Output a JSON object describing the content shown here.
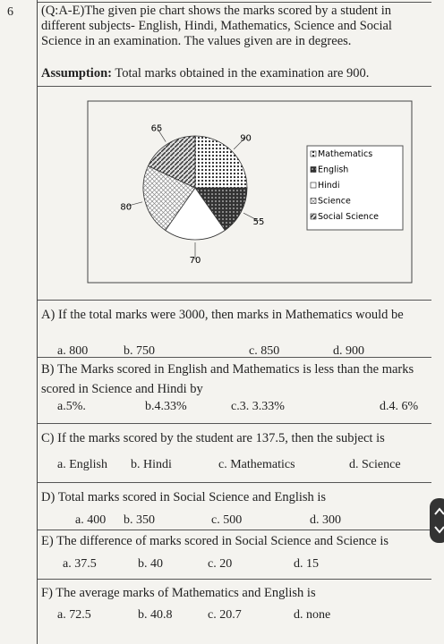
{
  "question_number": "6",
  "intro": "(Q:A-E)The given pie chart shows the marks scored by a student in different subjects- English, Hindi, Mathematics, Science and Social Science in an examination. The values given are in degrees.",
  "assumption": {
    "label": "Assumption:",
    "text": "Total marks obtained in the examination are 900."
  },
  "chart_data": {
    "type": "pie",
    "categories": [
      "Mathematics",
      "English",
      "Hindi",
      "Science",
      "Social Science"
    ],
    "values": [
      90,
      55,
      70,
      80,
      65
    ]
  },
  "questions": [
    {
      "label": "A)",
      "text": "If the total marks were 3000, then marks in Mathematics would be",
      "options": [
        "a. 800",
        "b. 750",
        "c. 850",
        "d. 900"
      ]
    },
    {
      "label": "B)",
      "text": "The Marks scored in English and Mathematics is less than the marks scored in Science and Hindi by",
      "options": [
        "a.5%.",
        "b.4.33%",
        "c.3. 3.33%",
        "d.4. 6%"
      ]
    },
    {
      "label": "C)",
      "text": "If the marks scored by the student are 137.5, then the subject is",
      "options": [
        "a. English",
        "b. Hindi",
        "c. Mathematics",
        "d. Science"
      ]
    },
    {
      "label": "D)",
      "text": "Total marks scored in Social Science and English is",
      "options": [
        "a. 400",
        "b. 350",
        "c. 500",
        "d. 300"
      ]
    },
    {
      "label": "E)",
      "text": "The difference of marks scored in Social Science and Science is",
      "options": [
        "a. 37.5",
        "b. 40",
        "c. 20",
        "d. 15"
      ]
    },
    {
      "label": "F)",
      "text": "The average marks of Mathematics and English is",
      "options": [
        "a. 72.5",
        "b. 40.8",
        "c. 20.7",
        "d. none"
      ]
    }
  ]
}
